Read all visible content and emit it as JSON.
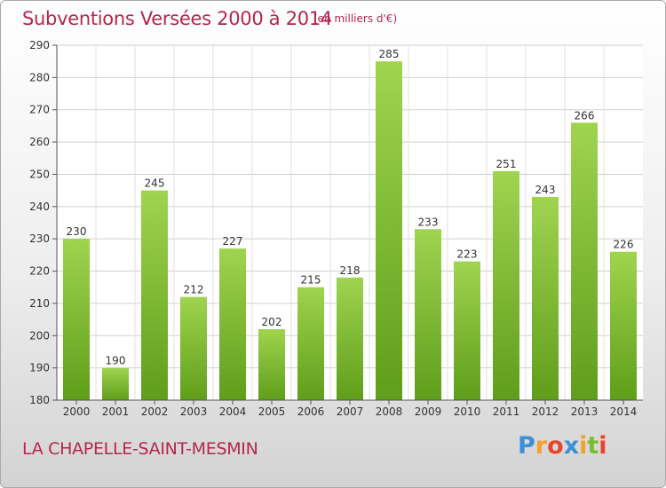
{
  "header": {
    "title": "Subventions Versées 2000 à 2014",
    "unit": "(en milliers d'€)"
  },
  "footer": {
    "place": "LA CHAPELLE-SAINT-MESMIN",
    "logo": "Proxiti"
  },
  "colors": {
    "title": "#b5264e",
    "bar_top": "#9fd44f",
    "bar_bottom": "#5f9e1a"
  },
  "chart_data": {
    "type": "bar",
    "categories": [
      "2000",
      "2001",
      "2002",
      "2003",
      "2004",
      "2005",
      "2006",
      "2007",
      "2008",
      "2009",
      "2010",
      "2011",
      "2012",
      "2013",
      "2014"
    ],
    "values": [
      230,
      190,
      245,
      212,
      227,
      202,
      215,
      218,
      285,
      233,
      223,
      251,
      243,
      266,
      226
    ],
    "ylim": [
      180,
      290
    ],
    "yticks": [
      180,
      190,
      200,
      210,
      220,
      230,
      240,
      250,
      260,
      270,
      280,
      290
    ],
    "grid": true,
    "data_labels": true
  }
}
